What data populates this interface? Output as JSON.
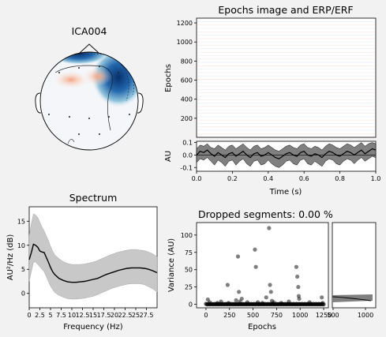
{
  "figure_bg": "#f2f2f2",
  "chart_data": [
    {
      "type": "topomap",
      "title": "ICA004"
    },
    {
      "type": "heatmap",
      "title": "Epochs image and ERP/ERF",
      "ylabel": "Epochs",
      "ylim": [
        0,
        1250
      ],
      "yticks": [
        "200",
        "400",
        "600",
        "800",
        "1000",
        "1200"
      ],
      "xlim": [
        0,
        1.0
      ]
    },
    {
      "type": "line",
      "title": "",
      "xlabel": "Time (s)",
      "ylabel": "AU",
      "xlim": [
        0,
        1.0
      ],
      "ylim": [
        -0.13,
        0.11
      ],
      "xticks": [
        "0.0",
        "0.2",
        "0.4",
        "0.6",
        "0.8",
        "1.0"
      ],
      "yticks": [
        "0.1",
        "0.0",
        "-0.1"
      ],
      "band_color": "#808080",
      "x": [
        0,
        0.02,
        0.04,
        0.06,
        0.08,
        0.1,
        0.12,
        0.14,
        0.16,
        0.18,
        0.2,
        0.22,
        0.24,
        0.26,
        0.28,
        0.3,
        0.32,
        0.34,
        0.36,
        0.38,
        0.4,
        0.42,
        0.44,
        0.46,
        0.48,
        0.5,
        0.52,
        0.54,
        0.56,
        0.58,
        0.6,
        0.62,
        0.64,
        0.66,
        0.68,
        0.7,
        0.72,
        0.74,
        0.76,
        0.78,
        0.8,
        0.82,
        0.84,
        0.86,
        0.88,
        0.9,
        0.92,
        0.94,
        0.96,
        0.98,
        1.0
      ],
      "mean": [
        0.0,
        0.03,
        0.02,
        0.04,
        0.01,
        -0.01,
        0.02,
        0.0,
        -0.02,
        0.01,
        0.02,
        -0.01,
        0.01,
        0.03,
        0.0,
        -0.02,
        0.01,
        0.02,
        -0.01,
        0.0,
        0.02,
        0.0,
        -0.02,
        -0.03,
        -0.01,
        0.01,
        0.02,
        0.0,
        -0.01,
        0.02,
        0.03,
        0.0,
        -0.01,
        0.01,
        0.0,
        -0.02,
        0.01,
        0.03,
        0.02,
        0.0,
        -0.01,
        0.01,
        0.03,
        0.02,
        0.0,
        0.02,
        0.04,
        0.01,
        0.03,
        0.05,
        0.04
      ],
      "lower": [
        -0.06,
        -0.03,
        -0.04,
        -0.02,
        -0.05,
        -0.08,
        -0.04,
        -0.06,
        -0.09,
        -0.05,
        -0.04,
        -0.08,
        -0.05,
        -0.03,
        -0.07,
        -0.09,
        -0.05,
        -0.04,
        -0.08,
        -0.07,
        -0.04,
        -0.07,
        -0.09,
        -0.1,
        -0.08,
        -0.05,
        -0.04,
        -0.07,
        -0.08,
        -0.04,
        -0.03,
        -0.07,
        -0.08,
        -0.05,
        -0.07,
        -0.09,
        -0.05,
        -0.03,
        -0.04,
        -0.07,
        -0.08,
        -0.05,
        -0.03,
        -0.04,
        -0.07,
        -0.04,
        -0.02,
        -0.05,
        -0.03,
        -0.01,
        -0.02
      ],
      "upper": [
        0.05,
        0.08,
        0.07,
        0.09,
        0.06,
        0.05,
        0.08,
        0.06,
        0.04,
        0.07,
        0.08,
        0.05,
        0.07,
        0.09,
        0.06,
        0.04,
        0.07,
        0.08,
        0.05,
        0.06,
        0.08,
        0.06,
        0.04,
        0.03,
        0.05,
        0.07,
        0.08,
        0.06,
        0.05,
        0.08,
        0.09,
        0.06,
        0.05,
        0.07,
        0.06,
        0.04,
        0.07,
        0.09,
        0.08,
        0.06,
        0.05,
        0.07,
        0.09,
        0.08,
        0.06,
        0.08,
        0.1,
        0.07,
        0.09,
        0.1,
        0.09
      ]
    },
    {
      "type": "line",
      "title": "Spectrum",
      "xlabel": "Frequency (Hz)",
      "ylabel": "AU²/Hz (dB)",
      "xlim": [
        0,
        30
      ],
      "ylim": [
        -3,
        18
      ],
      "xticks": [
        "0",
        "2.5",
        "5",
        "7.5",
        "10",
        "12.5",
        "15",
        "17.5",
        "20",
        "22.5",
        "25",
        "27.5"
      ],
      "xtick_values": [
        0,
        2.5,
        5,
        7.5,
        10,
        12.5,
        15,
        17.5,
        20,
        22.5,
        25,
        27.5
      ],
      "yticks": [
        "15",
        "10",
        "5",
        "0"
      ],
      "ytick_values": [
        15,
        10,
        5,
        0
      ],
      "band_color": "#c8c8c8",
      "x": [
        0,
        0.5,
        1,
        1.5,
        2,
        2.5,
        3,
        3.5,
        4,
        4.5,
        5,
        5.5,
        6,
        7,
        8,
        9,
        10,
        11,
        12,
        13,
        14,
        15,
        16,
        17,
        18,
        19,
        20,
        21,
        22,
        23,
        24,
        25,
        26,
        27,
        28,
        29,
        30
      ],
      "mean": [
        7,
        8.5,
        10.2,
        10,
        9.6,
        8.8,
        8.6,
        8.5,
        7.5,
        6.5,
        5.4,
        4.5,
        3.9,
        3.1,
        2.7,
        2.4,
        2.3,
        2.3,
        2.4,
        2.5,
        2.7,
        2.9,
        3.1,
        3.5,
        3.9,
        4.2,
        4.5,
        4.8,
        5.0,
        5.2,
        5.3,
        5.3,
        5.3,
        5.2,
        5.0,
        4.7,
        4.3
      ],
      "lower": [
        2.5,
        4.5,
        6.5,
        6.5,
        6,
        5.5,
        5,
        4.5,
        3.5,
        2.5,
        1.5,
        0.8,
        0.2,
        -0.4,
        -0.8,
        -1.1,
        -1.2,
        -1.2,
        -1.1,
        -1.0,
        -0.8,
        -0.6,
        -0.3,
        0.1,
        0.5,
        0.9,
        1.2,
        1.5,
        1.7,
        1.9,
        2.0,
        2.0,
        2.0,
        1.8,
        1.4,
        0.9,
        0.3
      ],
      "upper": [
        12,
        14.5,
        16.5,
        16.3,
        15.8,
        14.8,
        13.8,
        13,
        12,
        11,
        9.8,
        8.8,
        8,
        7.2,
        6.6,
        6.2,
        6.0,
        6.0,
        6.0,
        6.1,
        6.3,
        6.5,
        6.8,
        7.2,
        7.6,
        8.0,
        8.3,
        8.6,
        8.8,
        9.0,
        9.1,
        9.1,
        9.0,
        8.9,
        8.6,
        8.2,
        7.6
      ]
    },
    {
      "type": "scatter",
      "title": "Dropped segments: 0.00 %",
      "xlabel": "Epochs",
      "ylabel": "Variance (AU)",
      "xlim": [
        -100,
        1300
      ],
      "ylim": [
        -5,
        118
      ],
      "xticks": [
        "0",
        "250",
        "500",
        "750",
        "1000",
        "1250"
      ],
      "xtick_values": [
        0,
        250,
        500,
        750,
        1000,
        1250
      ],
      "yticks": [
        "100",
        "75",
        "50",
        "25",
        "0"
      ],
      "ytick_values": [
        100,
        75,
        50,
        25,
        0
      ],
      "dense_band": {
        "x_min": 0,
        "x_max": 1250,
        "y": 0
      },
      "points": [
        [
          20,
          7
        ],
        [
          40,
          3
        ],
        [
          120,
          2
        ],
        [
          160,
          4
        ],
        [
          230,
          28
        ],
        [
          240,
          2
        ],
        [
          320,
          6
        ],
        [
          340,
          69
        ],
        [
          350,
          18
        ],
        [
          360,
          4
        ],
        [
          380,
          8
        ],
        [
          440,
          3
        ],
        [
          520,
          79
        ],
        [
          530,
          54
        ],
        [
          550,
          3
        ],
        [
          600,
          2
        ],
        [
          640,
          10
        ],
        [
          670,
          110
        ],
        [
          680,
          28
        ],
        [
          690,
          18
        ],
        [
          700,
          5
        ],
        [
          720,
          3
        ],
        [
          800,
          2
        ],
        [
          880,
          4
        ],
        [
          960,
          54
        ],
        [
          970,
          40
        ],
        [
          980,
          25
        ],
        [
          985,
          12
        ],
        [
          990,
          8
        ],
        [
          1100,
          3
        ],
        [
          1230,
          10
        ],
        [
          1240,
          2
        ]
      ],
      "point_color": "#000000",
      "point_alpha": 0.5
    },
    {
      "type": "histogram",
      "title": "",
      "xticks": [
        "500",
        "1000"
      ],
      "xtick_values": [
        500,
        1000
      ]
    }
  ]
}
